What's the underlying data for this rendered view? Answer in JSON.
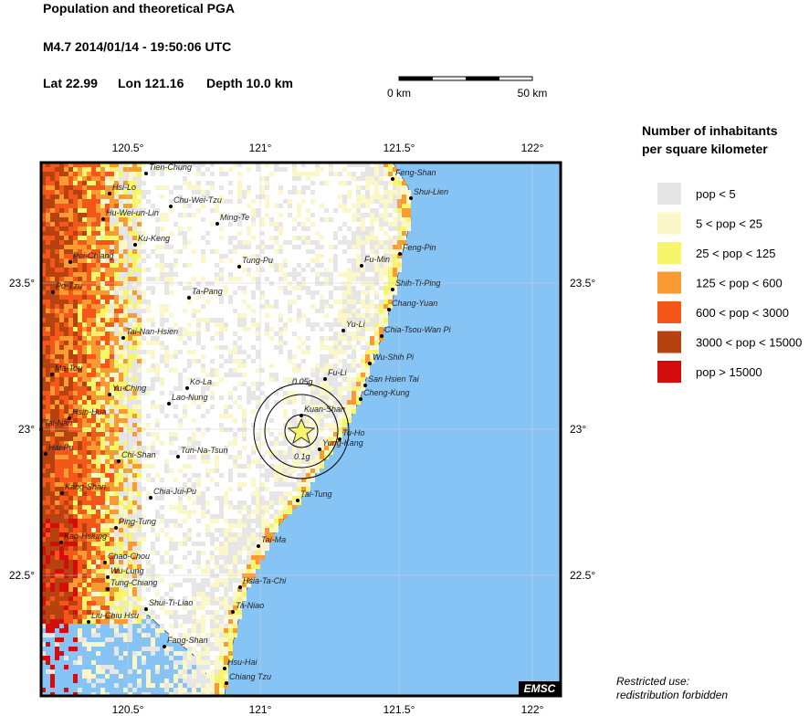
{
  "header": {
    "title": "Population and theoretical PGA",
    "event": "M4.7  2014/01/14 - 19:50:06 UTC",
    "location": [
      "Lat 22.99",
      "Lon 121.16",
      "Depth  10.0 km"
    ]
  },
  "scale_bar": {
    "labels": [
      "0 km",
      "50 km"
    ]
  },
  "axes": {
    "lon_labels": [
      "120.5°",
      "121°",
      "121.5°",
      "122°"
    ],
    "lat_labels": [
      "23.5°",
      "23°",
      "22.5°"
    ]
  },
  "pga_labels": [
    "0.05g",
    "0.1g"
  ],
  "cities": [
    "Tien-Chung",
    "Hsi-Lo",
    "Chu-Wei-Tzu",
    "Hu-Wei-un-Lin",
    "Ming-Te",
    "Ku-Keng",
    "Pei-Chiang",
    "Tung-Pu",
    "Po-Tzu",
    "Ta-Pang",
    "Tai-Nan-Hsien",
    "Ma-Tou",
    "Yu-Ching",
    "Ko-La",
    "Lao-Nung",
    "Hsin-Hua",
    "Tai-Nan",
    "Hai-Pu",
    "Chi-Shan",
    "Tun-Na-Tsun",
    "Kang-Shan",
    "Chia-Jui-Pu",
    "Ping-Tung",
    "Kao-Hsiung",
    "Chao-Chou",
    "Wu-Lung",
    "Tung-Chiang",
    "Shui-Ti-Liao",
    "Liu-Chiu Hsu",
    "Fang-Shan",
    "Hsu-Hai",
    "Chiang Tzu",
    "Ta-Niao",
    "Hsia-Ta-Chi",
    "Tai-Ma",
    "Tai-Tung",
    "Yung-Kang",
    "Tu-Ho",
    "Kuan-Shan",
    "Cheng-Kung",
    "San Hsien Tai",
    "Fu-Li",
    "Wu-Shih Pi",
    "Chia-Tsou-Wan Pi",
    "Yu-Li",
    "Chang-Yuan",
    "Shih-Ti-Ping",
    "Fu-Min",
    "Feng-Pin",
    "Shui-Lien",
    "Feng-Shan"
  ],
  "legend": {
    "title": [
      "Number of inhabitants",
      "per square kilometer"
    ],
    "items": [
      {
        "label": "pop < 5",
        "color": "#e6e6e6"
      },
      {
        "label": "5 < pop < 25",
        "color": "#fbf7c8"
      },
      {
        "label": "25 < pop < 125",
        "color": "#f9f56a"
      },
      {
        "label": "125 < pop < 600",
        "color": "#f99b33"
      },
      {
        "label": "600 < pop < 3000",
        "color": "#f5571a"
      },
      {
        "label": "3000 < pop < 15000",
        "color": "#b5420f"
      },
      {
        "label": "pop > 15000",
        "color": "#d50c0c"
      }
    ]
  },
  "footer": {
    "notice": [
      "Restricted use:",
      "redistribution forbidden"
    ],
    "credit": "EMSC"
  }
}
